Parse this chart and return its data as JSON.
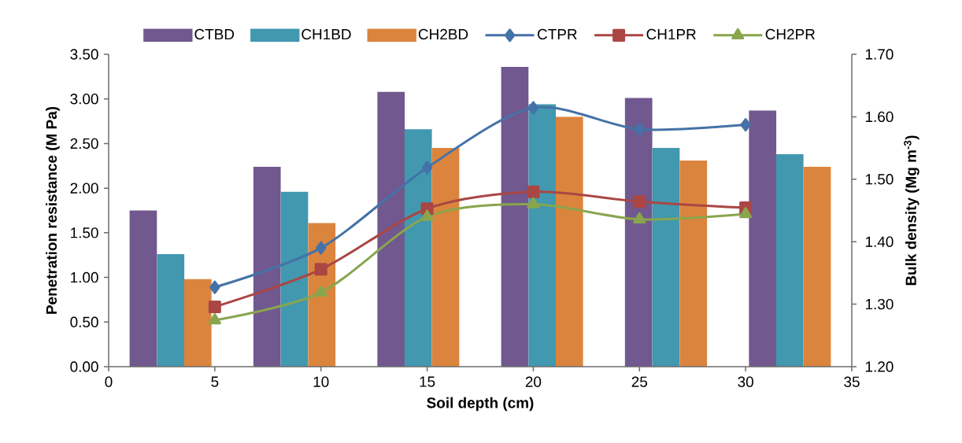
{
  "chart_data": {
    "type": "bar",
    "xlabel": "Soil depth (cm)",
    "ylabel": "Penetration resistance (M Pa)",
    "y2label": "Bulk density (Mg m$^{-3}$)",
    "xlim": [
      0,
      35
    ],
    "xticks": [
      0,
      5,
      10,
      15,
      20,
      25,
      30,
      35
    ],
    "ylim": [
      0,
      3.5
    ],
    "yticks": [
      {
        "value": 0,
        "label": "0.00"
      },
      {
        "value": 0.5,
        "label": "0.50"
      },
      {
        "value": 1,
        "label": "1.00"
      },
      {
        "value": 1.5,
        "label": "1.50"
      },
      {
        "value": 2,
        "label": "2.00"
      },
      {
        "value": 2.5,
        "label": "2.50"
      },
      {
        "value": 3,
        "label": "3.00"
      },
      {
        "value": 3.5,
        "label": "3.50"
      }
    ],
    "y2lim": [
      1.2,
      1.7
    ],
    "y2ticks": [
      {
        "value": 1.2,
        "label": "1.20"
      },
      {
        "value": 1.3,
        "label": "1.30"
      },
      {
        "value": 1.4,
        "label": "1.40"
      },
      {
        "value": 1.5,
        "label": "1.50"
      },
      {
        "value": 1.6,
        "label": "1.60"
      },
      {
        "value": 1.7,
        "label": "1.70"
      }
    ],
    "legend": "top",
    "series": [
      {
        "name": "CTBD",
        "axis": "y2",
        "color": "#71588f",
        "x": [
          1.63,
          7.46,
          13.3,
          19.13,
          24.96,
          30.8
        ],
        "values": [
          1.45,
          1.52,
          1.64,
          1.68,
          1.63,
          1.61
        ]
      },
      {
        "name": "CH1BD",
        "axis": "y2",
        "color": "#4198af",
        "x": [
          2.92,
          8.75,
          14.58,
          20.42,
          26.25,
          32.08
        ],
        "values": [
          1.38,
          1.48,
          1.58,
          1.62,
          1.55,
          1.54
        ]
      },
      {
        "name": "CH2BD",
        "axis": "y2",
        "color": "#db843d",
        "x": [
          4.2,
          10.04,
          15.87,
          21.7,
          27.54,
          33.37
        ],
        "values": [
          1.34,
          1.43,
          1.55,
          1.6,
          1.53,
          1.52
        ]
      },
      {
        "name": "CTPR",
        "type": "line",
        "marker": "diamond",
        "color": "#4572a7",
        "x": [
          5,
          10,
          15,
          20,
          25,
          30
        ],
        "values": [
          0.89,
          1.33,
          2.23,
          2.9,
          2.66,
          2.71
        ]
      },
      {
        "name": "CH1PR",
        "type": "line",
        "marker": "square",
        "color": "#aa4643",
        "x": [
          5,
          10,
          15,
          20,
          25,
          30
        ],
        "values": [
          0.67,
          1.09,
          1.77,
          1.96,
          1.85,
          1.78
        ]
      },
      {
        "name": "CH2PR",
        "type": "line",
        "marker": "triangle",
        "color": "#89a54e",
        "x": [
          5,
          10,
          15,
          20,
          25,
          30
        ],
        "values": [
          0.52,
          0.83,
          1.68,
          1.82,
          1.65,
          1.71
        ]
      }
    ]
  }
}
